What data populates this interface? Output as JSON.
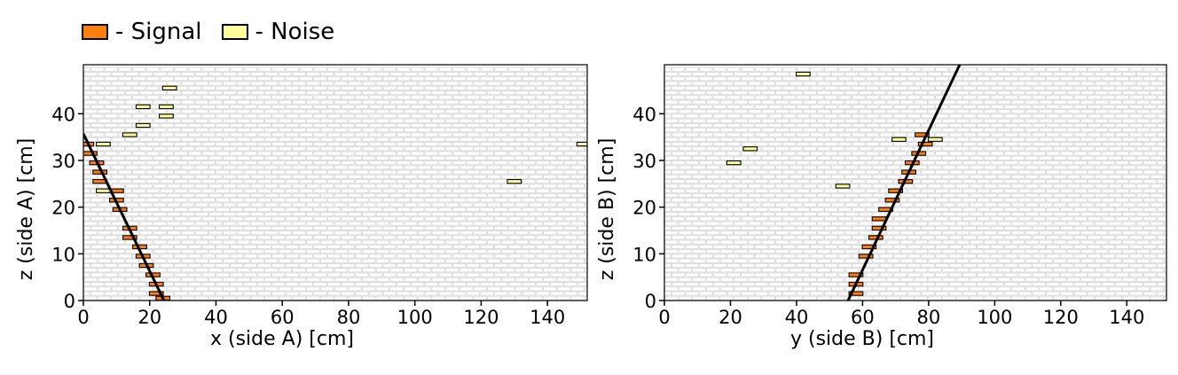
{
  "legend": [
    {
      "label": "- Signal",
      "color": "#ff7f0e"
    },
    {
      "label": "- Noise",
      "color": "#ffff99"
    }
  ],
  "colors": {
    "signal": "#ff7f0e",
    "noise": "#ffff99",
    "grid_cell": "#d9d9d9",
    "track": "#000000"
  },
  "chart_data": [
    {
      "type": "scatter",
      "xlabel": "x (side A) [cm]",
      "ylabel": "z (side A) [cm]",
      "xlim": [
        0,
        152
      ],
      "ylim": [
        0,
        50.5
      ],
      "xticks": [
        0,
        20,
        40,
        60,
        80,
        100,
        120,
        140
      ],
      "yticks": [
        0,
        10,
        20,
        30,
        40
      ],
      "layer_pitch": 2,
      "hit_width": 4.2,
      "series": [
        {
          "name": "Signal",
          "points": [
            [
              24,
              0.5
            ],
            [
              22,
              1.5
            ],
            [
              22,
              3.5
            ],
            [
              21,
              5.5
            ],
            [
              19,
              7.5
            ],
            [
              18,
              9.5
            ],
            [
              17,
              11.5
            ],
            [
              14,
              13.5
            ],
            [
              14,
              15.5
            ],
            [
              11,
              19.5
            ],
            [
              10,
              21.5
            ],
            [
              10,
              23.5
            ],
            [
              5,
              25.5
            ],
            [
              5,
              27.5
            ],
            [
              4,
              29.5
            ],
            [
              2,
              31.5
            ],
            [
              1,
              33.5
            ]
          ]
        },
        {
          "name": "Noise",
          "points": [
            [
              6,
              23.5
            ],
            [
              6,
              33.5
            ],
            [
              14,
              35.5
            ],
            [
              18,
              37.5
            ],
            [
              25,
              39.5
            ],
            [
              18,
              41.5
            ],
            [
              25,
              41.5
            ],
            [
              26,
              45.5
            ],
            [
              130,
              25.5
            ],
            [
              151,
              33.5
            ]
          ]
        }
      ],
      "track": [
        [
          0,
          35.7
        ],
        [
          24.3,
          0
        ]
      ]
    },
    {
      "type": "scatter",
      "xlabel": "y (side B) [cm]",
      "ylabel": "z (side B) [cm]",
      "xlim": [
        0,
        152
      ],
      "ylim": [
        0,
        50.5
      ],
      "xticks": [
        0,
        20,
        40,
        60,
        80,
        100,
        120,
        140
      ],
      "yticks": [
        0,
        10,
        20,
        30,
        40
      ],
      "layer_pitch": 2,
      "hit_width": 4.2,
      "series": [
        {
          "name": "Signal",
          "points": [
            [
              58,
              1.5
            ],
            [
              58,
              3.5
            ],
            [
              58,
              5.5
            ],
            [
              61,
              9.5
            ],
            [
              62,
              11.5
            ],
            [
              64,
              13.5
            ],
            [
              65,
              15.5
            ],
            [
              65,
              17.5
            ],
            [
              67,
              19.5
            ],
            [
              69,
              21.5
            ],
            [
              70,
              23.5
            ],
            [
              73,
              25.5
            ],
            [
              74,
              27.5
            ],
            [
              75,
              29.5
            ],
            [
              77,
              31.5
            ],
            [
              79,
              33.5
            ],
            [
              78,
              35.5
            ]
          ]
        },
        {
          "name": "Noise",
          "points": [
            [
              54,
              24.5
            ],
            [
              21,
              29.5
            ],
            [
              26,
              32.5
            ],
            [
              71,
              34.5
            ],
            [
              82,
              34.5
            ],
            [
              42,
              48.5
            ]
          ]
        }
      ],
      "track": [
        [
          55.6,
          0
        ],
        [
          89.4,
          50.5
        ]
      ]
    }
  ]
}
